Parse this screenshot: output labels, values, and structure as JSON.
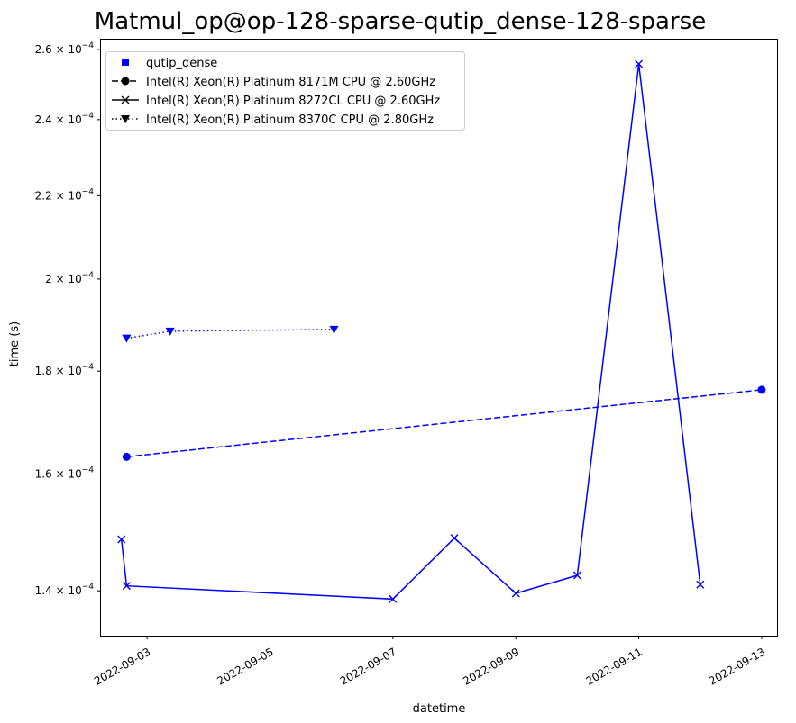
{
  "chart_data": {
    "type": "line",
    "title": "Matmul_op@op-128-sparse-qutip_dense-128-sparse",
    "xlabel": "datetime",
    "ylabel": "time (s)",
    "y_scale": "log",
    "ylim": [
      0.000133,
      0.000263
    ],
    "xlim": [
      "2022-09-02T06:00",
      "2022-09-13T06:00"
    ],
    "x_ticks": [
      "2022-09-03",
      "2022-09-05",
      "2022-09-07",
      "2022-09-09",
      "2022-09-11",
      "2022-09-13"
    ],
    "y_ticks": [
      {
        "value": 0.00014,
        "mantissa": "1.4",
        "exp": "−4"
      },
      {
        "value": 0.00016,
        "mantissa": "1.6",
        "exp": "−4"
      },
      {
        "value": 0.00018,
        "mantissa": "1.8",
        "exp": "−4"
      },
      {
        "value": 0.0002,
        "mantissa": "2",
        "exp": "−4"
      },
      {
        "value": 0.00022,
        "mantissa": "2.2",
        "exp": "−4"
      },
      {
        "value": 0.00024,
        "mantissa": "2.4",
        "exp": "−4"
      },
      {
        "value": 0.00026,
        "mantissa": "2.6",
        "exp": "−4"
      }
    ],
    "legend": {
      "placement": "top-left",
      "entries": [
        {
          "label": "qutip_dense",
          "marker": "square",
          "line": "none"
        },
        {
          "label": "Intel(R) Xeon(R) Platinum 8171M CPU @ 2.60GHz",
          "marker": "circle",
          "line": "dashed"
        },
        {
          "label": "Intel(R) Xeon(R) Platinum 8272CL CPU @ 2.60GHz",
          "marker": "x",
          "line": "solid"
        },
        {
          "label": "Intel(R) Xeon(R) Platinum 8370C CPU @ 2.80GHz",
          "marker": "triangle-down",
          "line": "dotted"
        }
      ]
    },
    "series": [
      {
        "name": "Intel(R) Xeon(R) Platinum 8171M CPU @ 2.60GHz",
        "color": "#0000ff",
        "marker": "circle",
        "line": "dashed",
        "points": [
          {
            "x": "2022-09-02T16:00",
            "y": 0.0001632
          },
          {
            "x": "2022-09-13T00:00",
            "y": 0.0001762
          }
        ]
      },
      {
        "name": "Intel(R) Xeon(R) Platinum 8272CL CPU @ 2.60GHz",
        "color": "#0000ff",
        "marker": "x",
        "line": "solid",
        "points": [
          {
            "x": "2022-09-02T14:00",
            "y": 0.0001485
          },
          {
            "x": "2022-09-02T16:00",
            "y": 0.0001408
          },
          {
            "x": "2022-09-07T00:00",
            "y": 0.0001387
          },
          {
            "x": "2022-09-08T00:00",
            "y": 0.0001487
          },
          {
            "x": "2022-09-09T00:00",
            "y": 0.0001396
          },
          {
            "x": "2022-09-10T00:00",
            "y": 0.0001425
          },
          {
            "x": "2022-09-11T00:00",
            "y": 0.0002558
          },
          {
            "x": "2022-09-12T00:00",
            "y": 0.000141
          }
        ]
      },
      {
        "name": "Intel(R) Xeon(R) Platinum 8370C CPU @ 2.80GHz",
        "color": "#0000ff",
        "marker": "triangle-down",
        "line": "dotted",
        "points": [
          {
            "x": "2022-09-02T16:00",
            "y": 0.0001869
          },
          {
            "x": "2022-09-03T09:00",
            "y": 0.0001884
          },
          {
            "x": "2022-09-06T01:00",
            "y": 0.0001888
          }
        ]
      }
    ],
    "grid": false
  }
}
